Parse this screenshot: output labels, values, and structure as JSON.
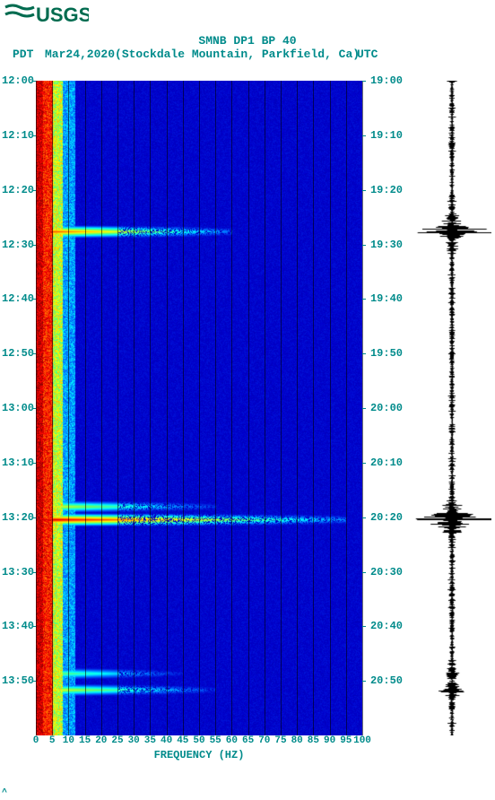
{
  "logo_text": "USGS",
  "title": "SMNB DP1 BP 40",
  "date_line": "Mar24,2020(Stockdale Mountain, Parkfield, Ca)",
  "pdt_label": "PDT",
  "utc_label": "UTC",
  "x_axis_label": "FREQUENCY (HZ)",
  "chart": {
    "type": "spectrogram",
    "x_min": 0,
    "x_max": 100,
    "x_ticks": [
      0,
      5,
      10,
      15,
      20,
      25,
      30,
      35,
      40,
      45,
      50,
      55,
      60,
      65,
      70,
      75,
      80,
      85,
      90,
      95,
      100
    ],
    "left_time_ticks": [
      "12:00",
      "12:10",
      "12:20",
      "12:30",
      "12:40",
      "12:50",
      "13:00",
      "13:10",
      "13:20",
      "13:30",
      "13:40",
      "13:50"
    ],
    "right_time_ticks": [
      "19:00",
      "19:10",
      "19:20",
      "19:30",
      "19:40",
      "19:50",
      "20:00",
      "20:10",
      "20:20",
      "20:30",
      "20:40",
      "20:50"
    ],
    "tick_positions_pct": [
      0,
      8.33,
      16.67,
      25,
      33.33,
      41.67,
      50,
      58.33,
      66.67,
      75,
      83.33,
      91.67
    ],
    "background_color": "#0000cd",
    "colormap_stops": [
      "#000080",
      "#0000cd",
      "#0066ff",
      "#00ffff",
      "#66ff66",
      "#ffff00",
      "#ff8000",
      "#ff0000",
      "#800000"
    ],
    "low_freq_band_hz": [
      0,
      10
    ],
    "events": [
      {
        "t_pct": 23.0,
        "max_hz": 60,
        "intensity": 0.9
      },
      {
        "t_pct": 65.0,
        "max_hz": 55,
        "intensity": 0.7
      },
      {
        "t_pct": 67.0,
        "max_hz": 95,
        "intensity": 1.0
      },
      {
        "t_pct": 90.5,
        "max_hz": 45,
        "intensity": 0.6
      },
      {
        "t_pct": 93.0,
        "max_hz": 55,
        "intensity": 0.7
      }
    ]
  },
  "waveform": {
    "baseline_color": "#000000",
    "base_amplitude": 3,
    "spikes": [
      {
        "t_pct": 23.0,
        "amp": 42
      },
      {
        "t_pct": 65.0,
        "amp": 12
      },
      {
        "t_pct": 67.0,
        "amp": 44
      },
      {
        "t_pct": 90.5,
        "amp": 10
      },
      {
        "t_pct": 93.0,
        "amp": 16
      }
    ]
  },
  "text_color": "#008b8b",
  "font_family": "Courier New",
  "font_weight": "bold",
  "title_fontsize": 13,
  "tick_fontsize": 12
}
